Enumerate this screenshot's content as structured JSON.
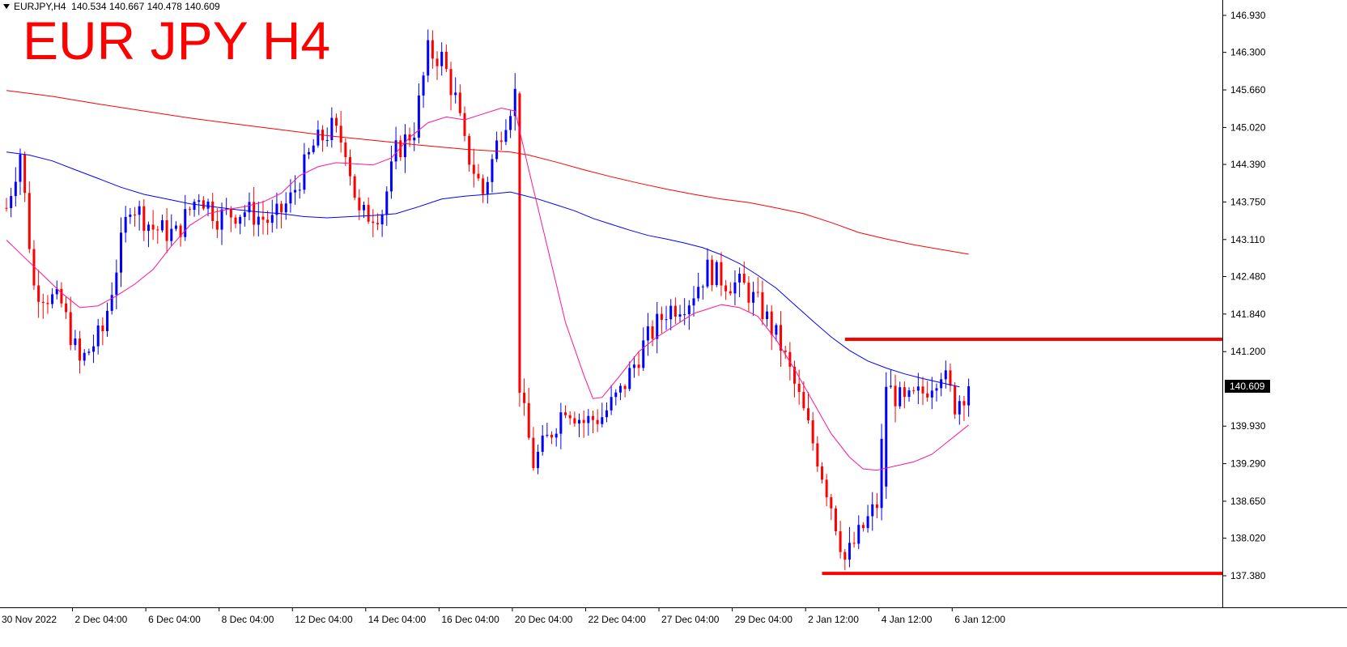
{
  "header": {
    "symbol": "EURJPY,H4",
    "ohlc": "140.534 140.667 140.478 140.609"
  },
  "annotation": {
    "title": "EUR JPY H4",
    "color": "#ff0000"
  },
  "colors": {
    "bull": "#0000ff",
    "bear": "#ff0000",
    "ma_fast": "#ff1493",
    "ma_mid": "#0000ff",
    "ma_slow": "#ff0000",
    "level": "#ff0000",
    "price_tag_bg": "#000000",
    "price_tag_fg": "#ffffff"
  },
  "chart_data": {
    "type": "candlestick",
    "symbol": "EURJPY",
    "timeframe": "H4",
    "ylim": [
      137.2,
      147.2
    ],
    "xlim": [
      -1,
      210
    ],
    "y_ticks": [
      "146.930",
      "146.300",
      "145.660",
      "145.020",
      "144.390",
      "143.750",
      "143.110",
      "142.480",
      "141.840",
      "141.200",
      "140.609",
      "139.930",
      "139.290",
      "138.650",
      "138.020",
      "137.380"
    ],
    "y_tick_values": [
      146.93,
      146.3,
      145.66,
      145.02,
      144.39,
      143.75,
      143.11,
      142.48,
      141.84,
      141.2,
      140.609,
      139.93,
      139.29,
      138.65,
      138.02,
      137.38
    ],
    "current_price": "140.609",
    "current_value": 140.609,
    "x_ticks": [
      {
        "label": "30 Nov 2022",
        "i": 0
      },
      {
        "label": "2 Dec 04:00",
        "i": 16
      },
      {
        "label": "6 Dec 04:00",
        "i": 32
      },
      {
        "label": "8 Dec 04:00",
        "i": 48
      },
      {
        "label": "12 Dec 04:00",
        "i": 64
      },
      {
        "label": "14 Dec 04:00",
        "i": 80
      },
      {
        "label": "16 Dec 04:00",
        "i": 96
      },
      {
        "label": "20 Dec 04:00",
        "i": 112
      },
      {
        "label": "22 Dec 04:00",
        "i": 128
      },
      {
        "label": "27 Dec 04:00",
        "i": 144
      },
      {
        "label": "29 Dec 04:00",
        "i": 160
      },
      {
        "label": "2 Jan 12:00",
        "i": 176
      },
      {
        "label": "4 Jan 12:00",
        "i": 192
      },
      {
        "label": "6 Jan 12:00",
        "i": 208
      }
    ],
    "hlines": [
      {
        "y": 141.41,
        "i_from": 183,
        "i_to": 268
      },
      {
        "y": 137.42,
        "i_from": 178,
        "i_to": 268
      }
    ],
    "price_keypoints": [
      [
        0,
        143.65
      ],
      [
        3,
        144.6
      ],
      [
        6,
        142.3
      ],
      [
        12,
        142.0
      ],
      [
        16,
        141.0
      ],
      [
        21,
        141.55
      ],
      [
        27,
        143.75
      ],
      [
        32,
        143.3
      ],
      [
        37,
        143.2
      ],
      [
        42,
        143.9
      ],
      [
        46,
        143.5
      ],
      [
        52,
        143.6
      ],
      [
        58,
        143.4
      ],
      [
        62,
        143.8
      ],
      [
        67,
        144.7
      ],
      [
        71,
        145.0
      ],
      [
        74,
        144.7
      ],
      [
        77,
        143.5
      ],
      [
        82,
        143.6
      ],
      [
        85,
        144.6
      ],
      [
        89,
        145.0
      ],
      [
        92,
        146.3
      ],
      [
        95,
        146.2
      ],
      [
        98,
        145.5
      ],
      [
        100,
        144.7
      ],
      [
        104,
        143.9
      ],
      [
        108,
        145.0
      ],
      [
        111,
        145.6
      ],
      [
        112,
        140.5
      ],
      [
        115,
        139.3
      ],
      [
        118,
        139.7
      ],
      [
        122,
        140.3
      ],
      [
        126,
        140.0
      ],
      [
        130,
        140.1
      ],
      [
        134,
        140.5
      ],
      [
        139,
        141.3
      ],
      [
        144,
        141.9
      ],
      [
        149,
        142.1
      ],
      [
        153,
        142.6
      ],
      [
        157,
        142.4
      ],
      [
        161,
        142.3
      ],
      [
        165,
        141.9
      ],
      [
        169,
        141.3
      ],
      [
        173,
        140.4
      ],
      [
        177,
        139.4
      ],
      [
        180,
        138.6
      ],
      [
        183,
        137.65
      ],
      [
        187,
        138.2
      ],
      [
        190,
        138.6
      ],
      [
        192,
        140.6
      ],
      [
        196,
        140.3
      ],
      [
        200,
        140.5
      ],
      [
        204,
        140.9
      ],
      [
        207,
        140.3
      ],
      [
        210,
        140.61
      ]
    ],
    "ma_fast_points": [
      [
        0,
        143.1
      ],
      [
        4,
        142.8
      ],
      [
        8,
        142.5
      ],
      [
        12,
        142.2
      ],
      [
        16,
        141.95
      ],
      [
        20,
        141.98
      ],
      [
        24,
        142.15
      ],
      [
        28,
        142.35
      ],
      [
        32,
        142.6
      ],
      [
        36,
        143.0
      ],
      [
        40,
        143.35
      ],
      [
        44,
        143.55
      ],
      [
        48,
        143.62
      ],
      [
        52,
        143.67
      ],
      [
        56,
        143.75
      ],
      [
        60,
        143.9
      ],
      [
        64,
        144.2
      ],
      [
        68,
        144.35
      ],
      [
        72,
        144.42
      ],
      [
        76,
        144.4
      ],
      [
        80,
        144.38
      ],
      [
        84,
        144.5
      ],
      [
        88,
        144.85
      ],
      [
        92,
        145.1
      ],
      [
        96,
        145.2
      ],
      [
        100,
        145.15
      ],
      [
        104,
        145.25
      ],
      [
        108,
        145.35
      ],
      [
        111,
        145.3
      ],
      [
        114,
        144.3
      ],
      [
        118,
        143.0
      ],
      [
        122,
        141.7
      ],
      [
        126,
        140.8
      ],
      [
        128,
        140.4
      ],
      [
        130,
        140.42
      ],
      [
        134,
        140.8
      ],
      [
        138,
        141.2
      ],
      [
        142,
        141.45
      ],
      [
        146,
        141.65
      ],
      [
        150,
        141.85
      ],
      [
        154,
        141.95
      ],
      [
        156,
        142.0
      ],
      [
        160,
        141.95
      ],
      [
        164,
        141.8
      ],
      [
        168,
        141.4
      ],
      [
        172,
        140.9
      ],
      [
        176,
        140.35
      ],
      [
        180,
        139.8
      ],
      [
        184,
        139.4
      ],
      [
        187,
        139.2
      ],
      [
        190,
        139.18
      ],
      [
        194,
        139.25
      ],
      [
        198,
        139.32
      ],
      [
        202,
        139.45
      ],
      [
        206,
        139.7
      ],
      [
        210,
        139.95
      ]
    ],
    "ma_mid_points": [
      [
        0,
        144.6
      ],
      [
        5,
        144.55
      ],
      [
        10,
        144.45
      ],
      [
        15,
        144.3
      ],
      [
        20,
        144.15
      ],
      [
        25,
        144.0
      ],
      [
        30,
        143.88
      ],
      [
        35,
        143.8
      ],
      [
        40,
        143.72
      ],
      [
        45,
        143.67
      ],
      [
        50,
        143.62
      ],
      [
        55,
        143.58
      ],
      [
        60,
        143.55
      ],
      [
        65,
        143.5
      ],
      [
        70,
        143.48
      ],
      [
        75,
        143.5
      ],
      [
        80,
        143.52
      ],
      [
        85,
        143.55
      ],
      [
        90,
        143.67
      ],
      [
        95,
        143.8
      ],
      [
        100,
        143.85
      ],
      [
        105,
        143.88
      ],
      [
        110,
        143.92
      ],
      [
        112,
        143.88
      ],
      [
        116,
        143.8
      ],
      [
        120,
        143.7
      ],
      [
        124,
        143.6
      ],
      [
        128,
        143.47
      ],
      [
        132,
        143.37
      ],
      [
        136,
        143.27
      ],
      [
        140,
        143.18
      ],
      [
        144,
        143.12
      ],
      [
        148,
        143.05
      ],
      [
        152,
        142.97
      ],
      [
        156,
        142.85
      ],
      [
        160,
        142.7
      ],
      [
        164,
        142.5
      ],
      [
        168,
        142.28
      ],
      [
        172,
        142.0
      ],
      [
        176,
        141.72
      ],
      [
        180,
        141.45
      ],
      [
        184,
        141.22
      ],
      [
        188,
        141.04
      ],
      [
        192,
        140.92
      ],
      [
        196,
        140.82
      ],
      [
        200,
        140.74
      ],
      [
        204,
        140.67
      ],
      [
        208,
        140.6
      ]
    ],
    "ma_slow_points": [
      [
        0,
        145.65
      ],
      [
        10,
        145.55
      ],
      [
        20,
        145.42
      ],
      [
        30,
        145.3
      ],
      [
        40,
        145.18
      ],
      [
        50,
        145.08
      ],
      [
        60,
        144.98
      ],
      [
        70,
        144.88
      ],
      [
        80,
        144.8
      ],
      [
        90,
        144.72
      ],
      [
        100,
        144.65
      ],
      [
        110,
        144.6
      ],
      [
        114,
        144.55
      ],
      [
        120,
        144.43
      ],
      [
        126,
        144.3
      ],
      [
        132,
        144.18
      ],
      [
        138,
        144.07
      ],
      [
        144,
        143.97
      ],
      [
        150,
        143.88
      ],
      [
        156,
        143.8
      ],
      [
        162,
        143.74
      ],
      [
        168,
        143.65
      ],
      [
        174,
        143.55
      ],
      [
        180,
        143.4
      ],
      [
        186,
        143.23
      ],
      [
        192,
        143.12
      ],
      [
        198,
        143.02
      ],
      [
        204,
        142.94
      ],
      [
        210,
        142.86
      ]
    ]
  }
}
